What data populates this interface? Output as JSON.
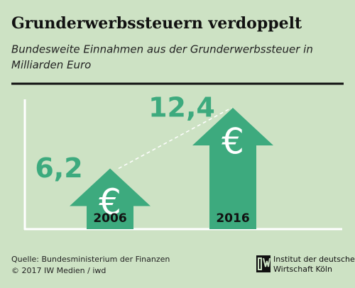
{
  "chart_data": {
    "type": "arrow-bar",
    "title": "Grunderwerbssteuern verdoppelt",
    "subtitle": [
      "Bundesweite Einnahmen aus der Grunderwerbssteuer in",
      "Milliarden Euro"
    ],
    "categories": [
      "2006",
      "2016"
    ],
    "values": [
      6.2,
      12.4
    ],
    "value_labels": [
      "6,2",
      "12,4"
    ],
    "symbol": "€",
    "color": "#3daa7e",
    "source": "Quelle: Bundesministerium der Finanzen",
    "credit": "© 2017 IW Medien / iwd",
    "logo": [
      "Institut der deutschen",
      "Wirtschaft Köln"
    ]
  }
}
